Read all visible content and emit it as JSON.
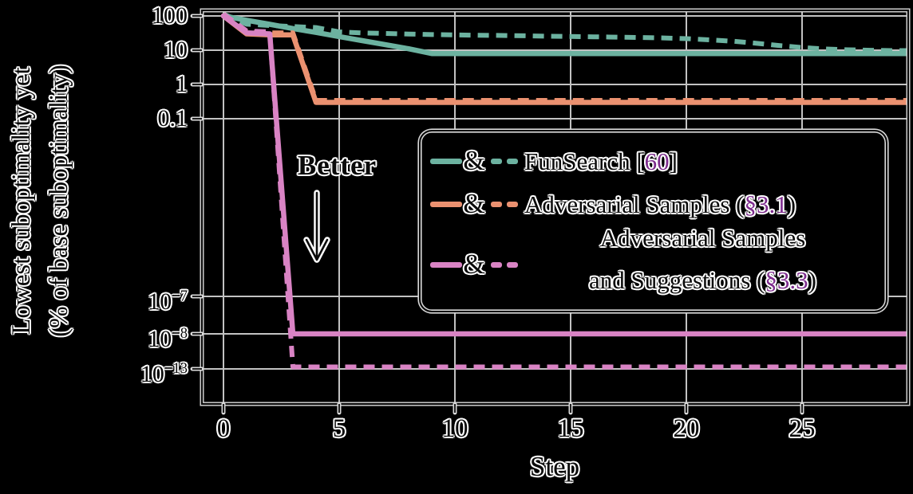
{
  "background_color": "#000000",
  "accent_color": "#7e2c8e",
  "chart_data": {
    "type": "line",
    "title": "",
    "xlabel": "Step",
    "ylabel": "Lowest suboptimality yet (% of base suboptimality)",
    "ylabel_lines": [
      "Lowest suboptimality yet",
      "(% of base suboptimality)"
    ],
    "yscale": "log (broken/compressed below 0.1)",
    "xlim": [
      -0.93,
      29.6
    ],
    "grid": true,
    "legend_position": "center-right",
    "annotation": {
      "text": "Better",
      "arrow": "down"
    },
    "x_ticks": [
      {
        "text": "0",
        "value": 0
      },
      {
        "text": "5",
        "value": 5
      },
      {
        "text": "10",
        "value": 10
      },
      {
        "text": "15",
        "value": 15
      },
      {
        "text": "20",
        "value": 20
      },
      {
        "text": "25",
        "value": 25
      }
    ],
    "y_ticks": [
      {
        "text": "100",
        "value": 100
      },
      {
        "text": "10",
        "value": 10
      },
      {
        "text": "1",
        "value": 1
      },
      {
        "text": "0.1",
        "value": 0.1
      },
      {
        "text": "10",
        "sup": "−7",
        "value": 1e-07
      },
      {
        "text": "10",
        "sup": "−8",
        "value": 1e-08
      },
      {
        "text": "10",
        "sup": "−13",
        "value": 1e-13
      }
    ],
    "steps": [
      0,
      1,
      2,
      3,
      4,
      5,
      6,
      7,
      8,
      9,
      10,
      11,
      12,
      13,
      14,
      15,
      16,
      17,
      18,
      19,
      20,
      21,
      22,
      23,
      24,
      25,
      26,
      27,
      28,
      29
    ],
    "series": [
      {
        "name": "FunSearch [60]",
        "color": "#6cb2a0",
        "solid": [
          100,
          75,
          57,
          43,
          33,
          25,
          19,
          14.5,
          11,
          8,
          8,
          8,
          8,
          8,
          8,
          8,
          8,
          8,
          8,
          8,
          8,
          8,
          8,
          8,
          8,
          8,
          8,
          8,
          8,
          8
        ],
        "dashed": [
          100,
          50,
          46,
          43,
          40,
          30,
          28,
          27,
          26,
          25,
          24.5,
          24,
          23.5,
          23,
          22.5,
          22,
          21.5,
          21,
          20.5,
          20,
          19,
          17.5,
          16,
          14,
          12,
          10.5,
          9.5,
          9,
          8.7,
          8.5
        ]
      },
      {
        "name": "Adversarial Samples (§3.1)",
        "color": "#eb9170",
        "solid": [
          100,
          30,
          28,
          28,
          0.3,
          0.3,
          0.3,
          0.3,
          0.3,
          0.3,
          0.3,
          0.3,
          0.3,
          0.3,
          0.3,
          0.3,
          0.3,
          0.3,
          0.3,
          0.3,
          0.3,
          0.3,
          0.3,
          0.3,
          0.3,
          0.3,
          0.3,
          0.3,
          0.3,
          0.3
        ],
        "dashed": [
          100,
          30,
          28,
          28,
          0.3,
          0.3,
          0.3,
          0.3,
          0.3,
          0.3,
          0.3,
          0.3,
          0.3,
          0.3,
          0.3,
          0.3,
          0.3,
          0.3,
          0.3,
          0.3,
          0.3,
          0.3,
          0.3,
          0.3,
          0.3,
          0.3,
          0.3,
          0.3,
          0.3,
          0.3
        ]
      },
      {
        "name": "Adversarial Samples and Suggestions (§3.3)",
        "color": "#d983c4",
        "solid": [
          100,
          32,
          30,
          1e-08,
          1e-08,
          1e-08,
          1e-08,
          1e-08,
          1e-08,
          1e-08,
          1e-08,
          1e-08,
          1e-08,
          1e-08,
          1e-08,
          1e-08,
          1e-08,
          1e-08,
          1e-08,
          1e-08,
          1e-08,
          1e-08,
          1e-08,
          1e-08,
          1e-08,
          1e-08,
          1e-08,
          1e-08,
          1e-08,
          1e-08
        ],
        "dashed": [
          100,
          32,
          30,
          1e-13,
          1e-13,
          1e-13,
          1e-13,
          1e-13,
          1e-13,
          1e-13,
          1e-13,
          1e-13,
          1e-13,
          1e-13,
          1e-13,
          1e-13,
          1e-13,
          1e-13,
          1e-13,
          1e-13,
          1e-13,
          1e-13,
          1e-13,
          1e-13,
          1e-13,
          1e-13,
          1e-13,
          1e-13,
          1e-13,
          1e-13
        ]
      }
    ],
    "legend": {
      "entries": [
        {
          "lines": [
            [
              {
                "t": "FunSearch ["
              },
              {
                "t": "60",
                "accent": true
              },
              {
                "t": "]"
              }
            ]
          ]
        },
        {
          "lines": [
            [
              {
                "t": "Adversarial Samples ("
              },
              {
                "t": "§3.1",
                "accent": true
              },
              {
                "t": ")"
              }
            ]
          ]
        },
        {
          "lines": [
            [
              {
                "t": "Adversarial Samples"
              }
            ],
            [
              {
                "t": "and Suggestions ("
              },
              {
                "t": "§3.3",
                "accent": true
              },
              {
                "t": ")"
              }
            ]
          ]
        }
      ]
    }
  }
}
